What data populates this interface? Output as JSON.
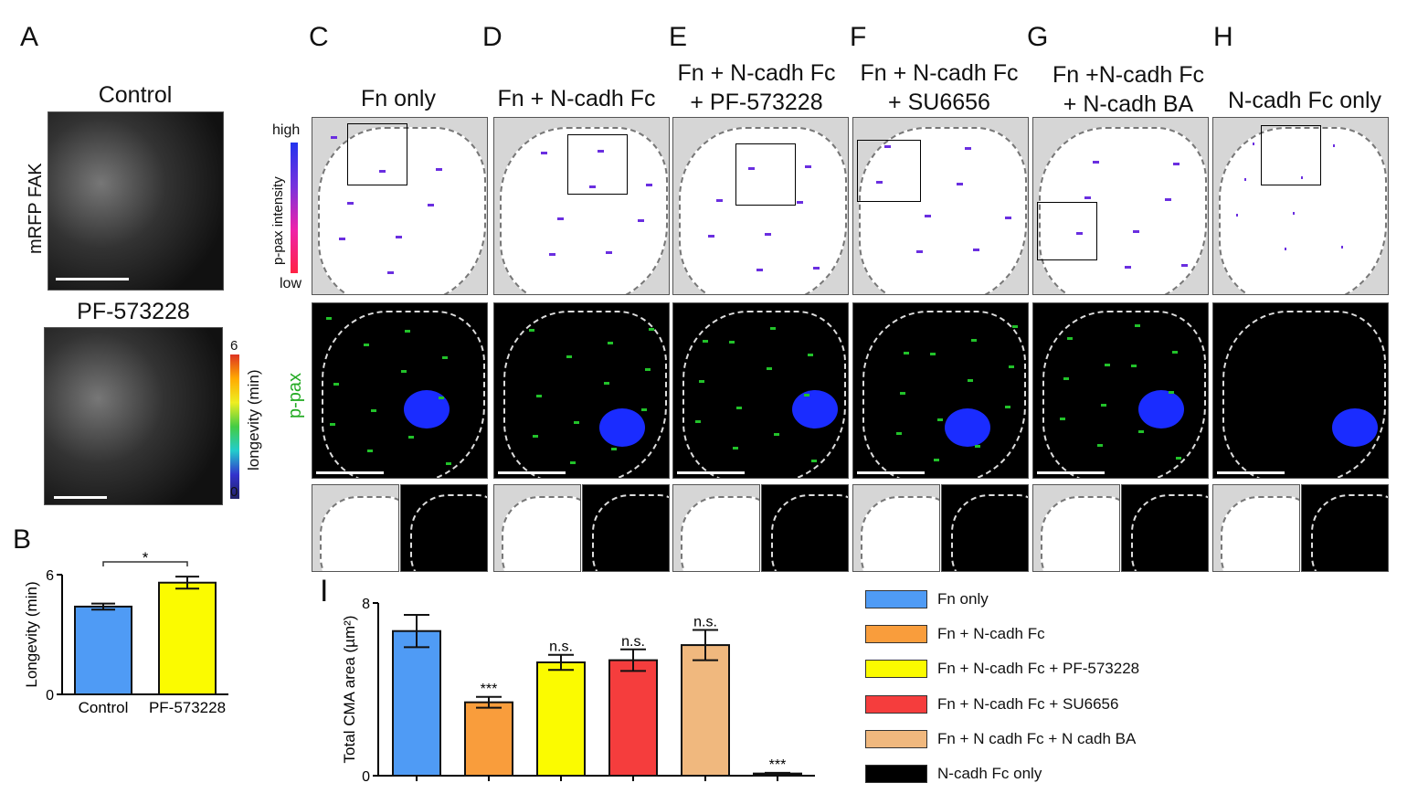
{
  "panels": {
    "A": {
      "label": "A",
      "title_top": "Control",
      "title_bottom": "PF-573228",
      "ylabel": "mRFP FAK",
      "colorbar": {
        "label": "longevity (min)",
        "max": "6",
        "min": "0"
      }
    },
    "B": {
      "label": "B"
    },
    "C": {
      "label": "C",
      "title": "Fn only"
    },
    "D": {
      "label": "D",
      "title": "Fn + N-cadh Fc"
    },
    "E": {
      "label": "E",
      "title1": "Fn + N-cadh Fc",
      "title2": "+ PF-573228"
    },
    "F": {
      "label": "F",
      "title1": "Fn + N-cadh Fc",
      "title2": "+ SU6656"
    },
    "G": {
      "label": "G",
      "title1": "Fn +N-cadh Fc",
      "title2": "+ N-cadh BA"
    },
    "H": {
      "label": "H",
      "title": "N-cadh Fc only"
    },
    "I": {
      "label": "I"
    },
    "intensity_bar": {
      "high": "high",
      "low": "low",
      "label": "p-pax intensity"
    },
    "row2_label": "p-pax"
  },
  "colors": {
    "fn_only": "#4f9bf5",
    "fn_ncadh": "#f99d3c",
    "pf": "#fbfb00",
    "su": "#f53d3d",
    "ba": "#f0b87e",
    "ncadh_only": "#000000",
    "ppax": "#22c22a",
    "nucleus": "#1a2cff"
  },
  "chart_data": [
    {
      "type": "bar",
      "panel": "B",
      "categories": [
        "Control",
        "PF-573228"
      ],
      "values": [
        4.4,
        5.6
      ],
      "errors": [
        0.15,
        0.3
      ],
      "colors": [
        "#4f9bf5",
        "#fbfb00"
      ],
      "ylabel": "Longevity (min)",
      "ylim": [
        0,
        6
      ],
      "yticks": [
        "0",
        "6"
      ],
      "significance": "*"
    },
    {
      "type": "bar",
      "panel": "I",
      "categories": [
        "Fn only",
        "Fn + N-cadh Fc",
        "Fn + N-cadh Fc + PF-573228",
        "Fn + N-cadh Fc + SU6656",
        "Fn + N cadh Fc + N cadh BA",
        "N-cadh Fc only"
      ],
      "values": [
        6.7,
        3.4,
        5.25,
        5.35,
        6.05,
        0.1
      ],
      "errors": [
        0.75,
        0.25,
        0.35,
        0.5,
        0.7,
        0.03
      ],
      "colors": [
        "#4f9bf5",
        "#f99d3c",
        "#fbfb00",
        "#f53d3d",
        "#f0b87e",
        "#000000"
      ],
      "annotations": [
        "",
        "***",
        "n.s.",
        "n.s.",
        "n.s.",
        "***"
      ],
      "ylabel": "Total CMA area (µm²)",
      "ylim": [
        0,
        8
      ],
      "yticks": [
        "0",
        "8"
      ],
      "legend": "right"
    }
  ]
}
